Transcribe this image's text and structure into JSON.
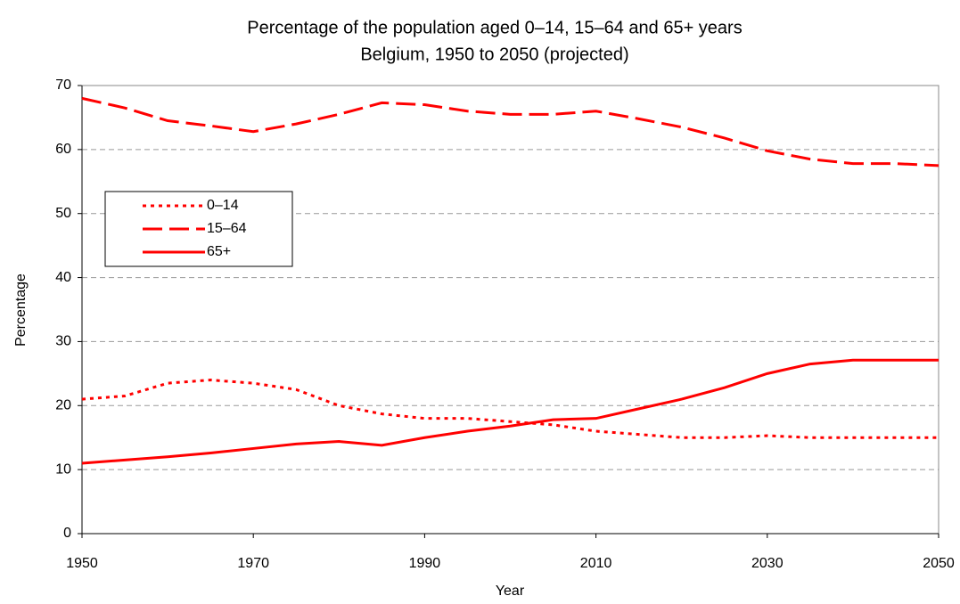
{
  "chart_data": {
    "type": "line",
    "title": "Percentage of the population aged 0–14, 15–64 and 65+ years",
    "subtitle": "Belgium, 1950 to 2050 (projected)",
    "x_label": "Year",
    "y_label": "Percentage",
    "x": [
      1950,
      1955,
      1960,
      1965,
      1970,
      1975,
      1980,
      1985,
      1990,
      1995,
      2000,
      2005,
      2010,
      2015,
      2020,
      2025,
      2030,
      2035,
      2040,
      2045,
      2050
    ],
    "series": [
      {
        "name": "0–14",
        "color": "#ff0000",
        "dash": "dotted",
        "values": [
          21,
          21.5,
          23.5,
          24,
          23.5,
          22.5,
          20,
          18.7,
          18,
          18,
          17.5,
          17,
          16,
          15.5,
          15,
          15,
          15.3,
          15,
          15,
          15,
          15
        ]
      },
      {
        "name": "15–64",
        "color": "#ff0000",
        "dash": "dashed",
        "values": [
          68,
          66.5,
          64.5,
          63.7,
          62.8,
          64,
          65.5,
          67.3,
          67,
          66,
          65.5,
          65.5,
          66,
          64.8,
          63.5,
          61.8,
          59.8,
          58.5,
          57.8,
          57.8,
          57.5
        ]
      },
      {
        "name": "65+",
        "color": "#ff0000",
        "dash": "solid",
        "values": [
          11,
          11.5,
          12,
          12.6,
          13.3,
          14,
          14.4,
          13.8,
          15,
          16,
          16.8,
          17.8,
          18,
          19.5,
          21,
          22.8,
          25,
          26.5,
          27.1,
          27.1,
          27.1
        ]
      }
    ],
    "xlim": [
      1950,
      2050
    ],
    "xticks": [
      1950,
      1970,
      1990,
      2010,
      2030,
      2050
    ],
    "ylim": [
      0,
      70
    ],
    "yticks": [
      0,
      10,
      20,
      30,
      40,
      50,
      60,
      70
    ],
    "grid": true,
    "legend": "upper-left"
  }
}
